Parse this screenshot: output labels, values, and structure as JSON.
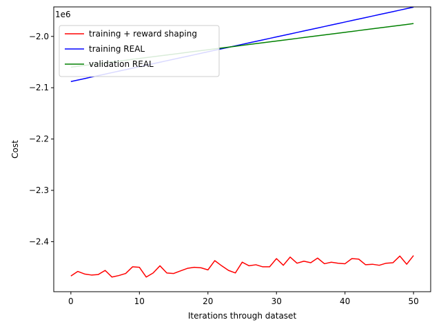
{
  "chart_data": {
    "type": "line",
    "title": "",
    "xlabel": "Iterations through dataset",
    "ylabel": "Cost",
    "y_offset_label": "1e6",
    "xlim": [
      -2.5,
      52.5
    ],
    "ylim": [
      -2.4975,
      -1.9425
    ],
    "y_scale_factor": 1000000,
    "x_ticks": [
      0,
      10,
      20,
      30,
      40,
      50
    ],
    "x_tick_labels": [
      "0",
      "10",
      "20",
      "30",
      "40",
      "50"
    ],
    "y_ticks": [
      -2.4,
      -2.3,
      -2.2,
      -2.1,
      -2.0
    ],
    "y_tick_labels": [
      "−2.4",
      "−2.3",
      "−2.2",
      "−2.1",
      "−2.0"
    ],
    "grid": false,
    "legend_position": "top-left",
    "x": [
      0,
      1,
      2,
      3,
      4,
      5,
      6,
      7,
      8,
      9,
      10,
      11,
      12,
      13,
      14,
      15,
      16,
      17,
      18,
      19,
      20,
      21,
      22,
      23,
      24,
      25,
      26,
      27,
      28,
      29,
      30,
      31,
      32,
      33,
      34,
      35,
      36,
      37,
      38,
      39,
      40,
      41,
      42,
      43,
      44,
      45,
      46,
      47,
      48,
      49,
      50
    ],
    "series": [
      {
        "name": "training + reward shaping",
        "color": "#ff0000",
        "values": [
          -2.467,
          -2.458,
          -2.463,
          -2.465,
          -2.464,
          -2.456,
          -2.469,
          -2.466,
          -2.462,
          -2.449,
          -2.45,
          -2.469,
          -2.461,
          -2.447,
          -2.461,
          -2.462,
          -2.457,
          -2.452,
          -2.45,
          -2.451,
          -2.455,
          -2.437,
          -2.447,
          -2.456,
          -2.461,
          -2.44,
          -2.447,
          -2.445,
          -2.449,
          -2.449,
          -2.433,
          -2.446,
          -2.43,
          -2.442,
          -2.438,
          -2.441,
          -2.432,
          -2.443,
          -2.44,
          -2.442,
          -2.443,
          -2.433,
          -2.434,
          -2.445,
          -2.444,
          -2.446,
          -2.442,
          -2.441,
          -2.428,
          -2.444,
          -2.427
        ]
      },
      {
        "name": "training REAL",
        "color": "#0000ff",
        "values": [
          -2.088,
          -2.0851,
          -2.0822,
          -2.0793,
          -2.0764,
          -2.0735,
          -2.0706,
          -2.0677,
          -2.0648,
          -2.0619,
          -2.059,
          -2.0561,
          -2.0532,
          -2.0503,
          -2.0474,
          -2.0445,
          -2.0416,
          -2.0387,
          -2.0358,
          -2.0329,
          -2.03,
          -2.0271,
          -2.0242,
          -2.0213,
          -2.0184,
          -2.0155,
          -2.0126,
          -2.0097,
          -2.0068,
          -2.0039,
          -2.001,
          -1.9981,
          -1.9952,
          -1.9923,
          -1.9894,
          -1.9865,
          -1.9836,
          -1.9807,
          -1.9778,
          -1.9749,
          -1.972,
          -1.9691,
          -1.9662,
          -1.9633,
          -1.9604,
          -1.9575,
          -1.9546,
          -1.9517,
          -1.9488,
          -1.9459,
          -1.943
        ]
      },
      {
        "name": "validation REAL",
        "color": "#008000",
        "values": [
          -2.06,
          -2.0583,
          -2.0566,
          -2.0549,
          -2.0532,
          -2.0515,
          -2.0498,
          -2.0481,
          -2.0464,
          -2.0447,
          -2.043,
          -2.0413,
          -2.0396,
          -2.0379,
          -2.0362,
          -2.0345,
          -2.0328,
          -2.0311,
          -2.0294,
          -2.0277,
          -2.026,
          -2.0243,
          -2.0226,
          -2.0209,
          -2.0192,
          -2.0175,
          -2.0158,
          -2.0141,
          -2.0124,
          -2.0107,
          -2.009,
          -2.0073,
          -2.0056,
          -2.0039,
          -2.0022,
          -2.0005,
          -1.9988,
          -1.9971,
          -1.9954,
          -1.9937,
          -1.992,
          -1.9903,
          -1.9886,
          -1.9869,
          -1.9852,
          -1.9835,
          -1.9818,
          -1.9801,
          -1.9784,
          -1.9767,
          -1.975
        ]
      }
    ]
  }
}
